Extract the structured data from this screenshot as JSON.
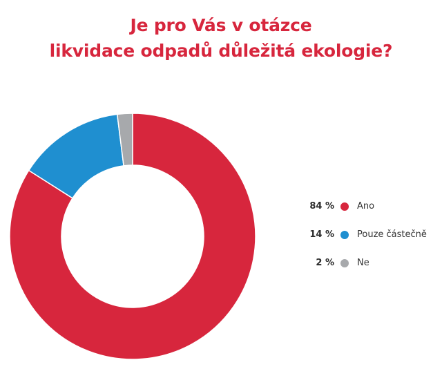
{
  "chart_data": {
    "type": "pie",
    "title_lines": [
      "Je pro Vás v otázce",
      "likvidace odpadů důležitá ekologie?"
    ],
    "categories": [
      "Ano",
      "Pouze částečně",
      "Ne"
    ],
    "values": [
      84,
      14,
      2
    ],
    "value_labels": [
      "84 %",
      "14 %",
      "2 %"
    ],
    "colors": [
      "#d7263d",
      "#1f8fd0",
      "#a7a9ac"
    ],
    "donut": true,
    "legend_position": "right"
  }
}
